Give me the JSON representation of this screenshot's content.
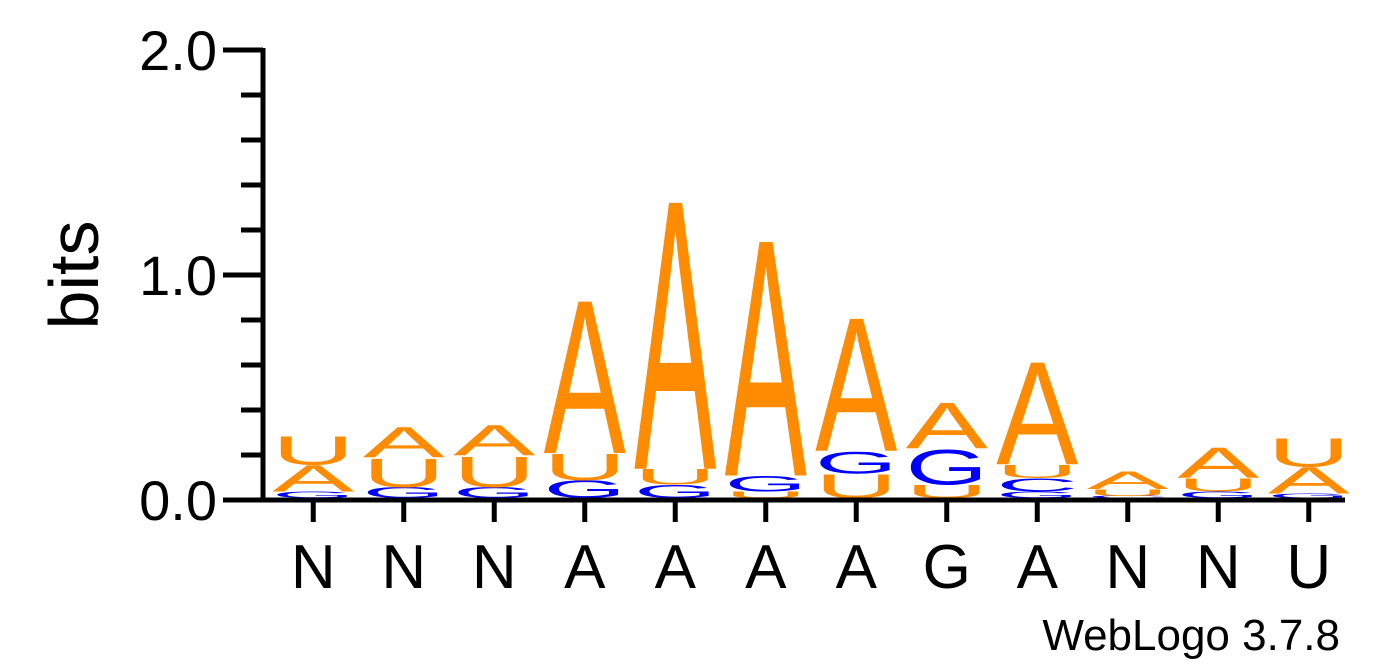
{
  "chart_data": {
    "type": "sequence-logo",
    "ylabel": "bits",
    "ylim": [
      0,
      2.0
    ],
    "yticks": [
      "0.0",
      "1.0",
      "2.0"
    ],
    "colors": {
      "A": "#ff8c00",
      "U": "#ff8c00",
      "G": "#0000ff",
      "C": "#0000ff"
    },
    "x_labels": [
      "N",
      "N",
      "N",
      "A",
      "A",
      "A",
      "A",
      "G",
      "A",
      "N",
      "N",
      "U"
    ],
    "positions": [
      {
        "stack": [
          {
            "letter": "G",
            "bits": 0.03
          },
          {
            "letter": "A",
            "bits": 0.12
          },
          {
            "letter": "U",
            "bits": 0.13
          }
        ]
      },
      {
        "stack": [
          {
            "letter": "G",
            "bits": 0.05
          },
          {
            "letter": "U",
            "bits": 0.13
          },
          {
            "letter": "A",
            "bits": 0.14
          }
        ]
      },
      {
        "stack": [
          {
            "letter": "G",
            "bits": 0.05
          },
          {
            "letter": "U",
            "bits": 0.14
          },
          {
            "letter": "A",
            "bits": 0.14
          }
        ]
      },
      {
        "stack": [
          {
            "letter": "G",
            "bits": 0.08
          },
          {
            "letter": "U",
            "bits": 0.12
          },
          {
            "letter": "A",
            "bits": 0.7
          }
        ]
      },
      {
        "stack": [
          {
            "letter": "G",
            "bits": 0.06
          },
          {
            "letter": "U",
            "bits": 0.07
          },
          {
            "letter": "A",
            "bits": 1.23
          }
        ]
      },
      {
        "stack": [
          {
            "letter": "U",
            "bits": 0.03
          },
          {
            "letter": "G",
            "bits": 0.07
          },
          {
            "letter": "A",
            "bits": 1.08
          }
        ]
      },
      {
        "stack": [
          {
            "letter": "U",
            "bits": 0.11
          },
          {
            "letter": "G",
            "bits": 0.1
          },
          {
            "letter": "A",
            "bits": 0.61
          }
        ]
      },
      {
        "stack": [
          {
            "letter": "U",
            "bits": 0.06
          },
          {
            "letter": "G",
            "bits": 0.16
          },
          {
            "letter": "A",
            "bits": 0.21
          }
        ]
      },
      {
        "stack": [
          {
            "letter": "G",
            "bits": 0.03
          },
          {
            "letter": "C",
            "bits": 0.06
          },
          {
            "letter": "U",
            "bits": 0.06
          },
          {
            "letter": "A",
            "bits": 0.47
          }
        ]
      },
      {
        "stack": [
          {
            "letter": "C",
            "bits": 0.01
          },
          {
            "letter": "U",
            "bits": 0.03
          },
          {
            "letter": "A",
            "bits": 0.08
          }
        ]
      },
      {
        "stack": [
          {
            "letter": "G",
            "bits": 0.03
          },
          {
            "letter": "U",
            "bits": 0.06
          },
          {
            "letter": "A",
            "bits": 0.14
          }
        ]
      },
      {
        "stack": [
          {
            "letter": "G",
            "bits": 0.02
          },
          {
            "letter": "A",
            "bits": 0.12
          },
          {
            "letter": "U",
            "bits": 0.13
          }
        ]
      }
    ]
  },
  "credit": "WebLogo 3.7.8"
}
